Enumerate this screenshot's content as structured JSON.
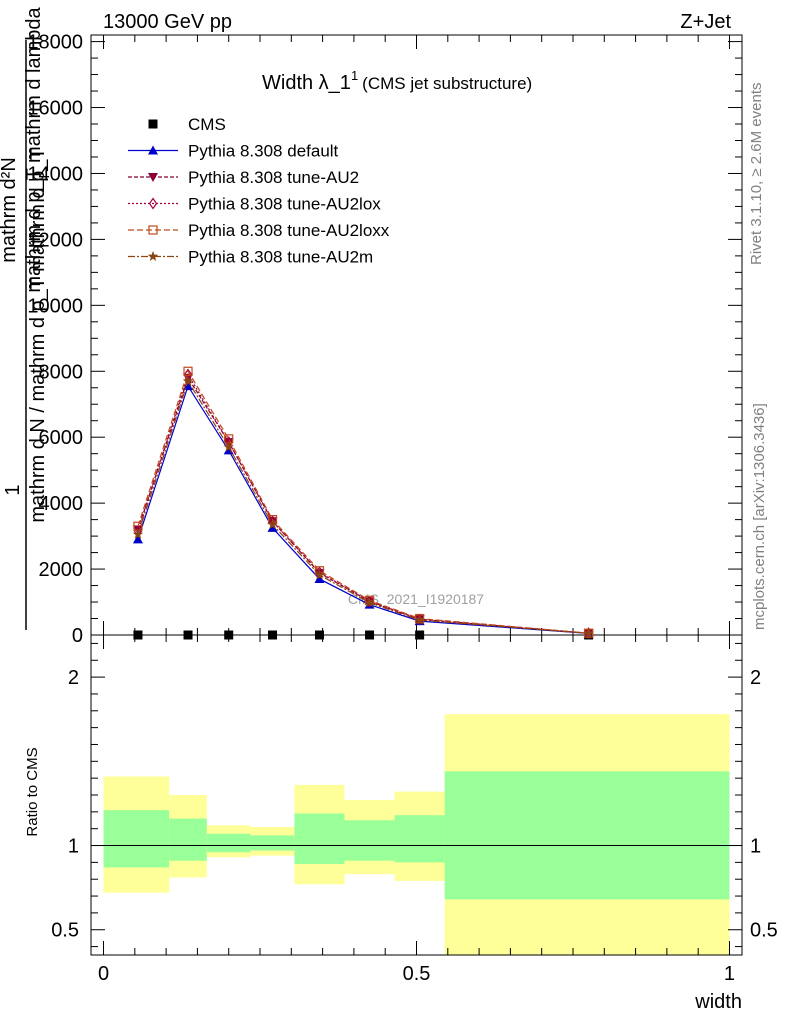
{
  "header": {
    "left": "13000 GeV pp",
    "right": "Z+Jet"
  },
  "title": {
    "main": "Width λ_1",
    "sup": "1",
    "sub": "(CMS jet substructure)"
  },
  "side_labels": {
    "rivet": "Rivet 3.1.10, ≥ 2.6M events",
    "mcplots": "mcplots.cern.ch [arXiv:1306.3436]"
  },
  "watermark": "CMS_2021_I1920187",
  "colors": {
    "cms": "#000000",
    "default": "#0000cc",
    "au2": "#8b0036",
    "au2lox": "#a5003e",
    "au2loxx": "#c24a1a",
    "au2m": "#8b4513",
    "band_outer": "#ffff99",
    "band_inner": "#99ff99"
  },
  "chart_data": [
    {
      "type": "line",
      "panel": "main",
      "ylabel_parts": {
        "num": "1",
        "den": "mathrm d N / mathrm d p_T mathrm d p_T",
        "frac_num": "mathrm d²N",
        "frac_den": "mathrm d p_T mathrm d lambda"
      },
      "xlim": [
        -0.02,
        1.02
      ],
      "ylim": [
        0,
        18200
      ],
      "yticks": [
        0,
        2000,
        4000,
        6000,
        8000,
        10000,
        12000,
        14000,
        16000,
        18000
      ],
      "ytick_labels": [
        "0",
        "2000",
        "4000",
        "6000",
        "8000",
        "10000",
        "12000",
        "14000",
        "16000",
        "18000"
      ],
      "legend_position": "top-left",
      "series": [
        {
          "name": "CMS",
          "marker": "square",
          "x": [
            0.055,
            0.135,
            0.2,
            0.27,
            0.345,
            0.425,
            0.505,
            0.775
          ],
          "y": [
            0,
            0,
            0,
            0,
            0,
            0,
            0,
            0
          ]
        },
        {
          "name": "Pythia 8.308 default",
          "marker": "triangle-up",
          "dash": "solid",
          "x": [
            0.055,
            0.135,
            0.2,
            0.27,
            0.345,
            0.425,
            0.505,
            0.775
          ],
          "y": [
            2900,
            7550,
            5600,
            3250,
            1700,
            920,
            420,
            50
          ]
        },
        {
          "name": "Pythia 8.308 tune-AU2",
          "marker": "triangle-down",
          "dash": "4,2",
          "x": [
            0.055,
            0.135,
            0.2,
            0.27,
            0.345,
            0.425,
            0.505,
            0.775
          ],
          "y": [
            3200,
            7800,
            5850,
            3450,
            1880,
            1020,
            480,
            55
          ]
        },
        {
          "name": "Pythia 8.308 tune-AU2lox",
          "marker": "diamond-open",
          "dash": "2,2",
          "x": [
            0.055,
            0.135,
            0.2,
            0.27,
            0.345,
            0.425,
            0.505,
            0.775
          ],
          "y": [
            3150,
            7900,
            5850,
            3450,
            1900,
            1020,
            470,
            55
          ]
        },
        {
          "name": "Pythia 8.308 tune-AU2loxx",
          "marker": "square-open",
          "dash": "6,3",
          "x": [
            0.055,
            0.135,
            0.2,
            0.27,
            0.345,
            0.425,
            0.505,
            0.775
          ],
          "y": [
            3300,
            8000,
            5950,
            3500,
            1950,
            1050,
            500,
            55
          ]
        },
        {
          "name": "Pythia 8.308 tune-AU2m",
          "marker": "star",
          "dash": "7,2,2,2",
          "x": [
            0.055,
            0.135,
            0.2,
            0.27,
            0.345,
            0.425,
            0.505,
            0.775
          ],
          "y": [
            3050,
            7700,
            5700,
            3350,
            1820,
            980,
            450,
            52
          ]
        }
      ]
    },
    {
      "type": "area",
      "panel": "ratio",
      "ylabel": "Ratio to CMS",
      "xlabel": "width",
      "xlim": [
        -0.02,
        1.02
      ],
      "ylim": [
        0.35,
        2.25
      ],
      "yticks": [
        0.5,
        1,
        2
      ],
      "ytick_labels": [
        "0.5",
        "1",
        "2"
      ],
      "xticks": [
        0,
        0.5,
        1
      ],
      "xtick_labels": [
        "0",
        "0.5",
        "1"
      ],
      "reference_line": 1,
      "bins": [
        {
          "lo": 0.0,
          "hi": 0.105,
          "outer": [
            0.72,
            1.41
          ],
          "inner": [
            0.87,
            1.21
          ]
        },
        {
          "lo": 0.105,
          "hi": 0.165,
          "outer": [
            0.81,
            1.3
          ],
          "inner": [
            0.91,
            1.16
          ]
        },
        {
          "lo": 0.165,
          "hi": 0.235,
          "outer": [
            0.93,
            1.12
          ],
          "inner": [
            0.96,
            1.07
          ]
        },
        {
          "lo": 0.235,
          "hi": 0.305,
          "outer": [
            0.94,
            1.11
          ],
          "inner": [
            0.97,
            1.06
          ]
        },
        {
          "lo": 0.305,
          "hi": 0.385,
          "outer": [
            0.77,
            1.36
          ],
          "inner": [
            0.89,
            1.19
          ]
        },
        {
          "lo": 0.385,
          "hi": 0.465,
          "outer": [
            0.83,
            1.27
          ],
          "inner": [
            0.91,
            1.15
          ]
        },
        {
          "lo": 0.465,
          "hi": 0.545,
          "outer": [
            0.79,
            1.32
          ],
          "inner": [
            0.9,
            1.18
          ]
        },
        {
          "lo": 0.545,
          "hi": 1.0,
          "outer": [
            0.35,
            1.78
          ],
          "inner": [
            0.68,
            1.44
          ]
        }
      ]
    }
  ]
}
